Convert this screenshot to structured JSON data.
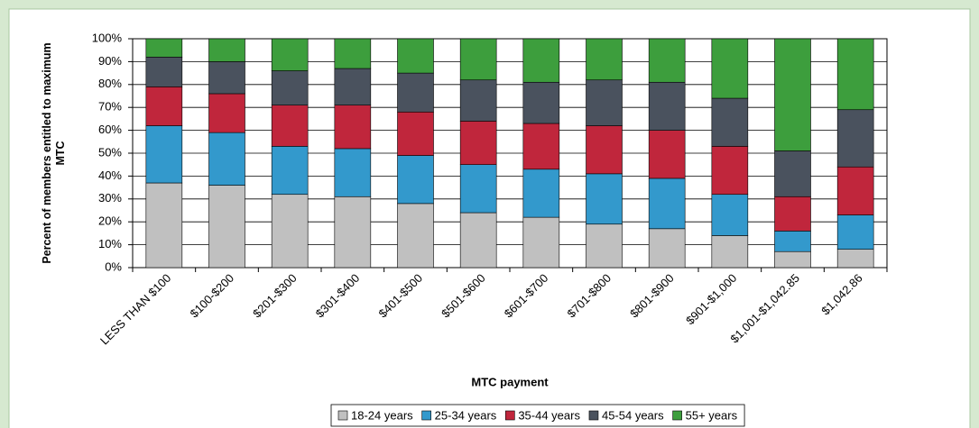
{
  "chart_data": {
    "type": "stacked_bar",
    "x_label": "MTC payment",
    "y_label": "Percent of members entitled to maximum MTC",
    "categories": [
      "LESS THAN $100",
      "$100-$200",
      "$201-$300",
      "$301-$400",
      "$401-$500",
      "$501-$600",
      "$601-$700",
      "$701-$800",
      "$801-$900",
      "$901-$1,000",
      "$1,001-$1,042.85",
      "$1,042.86"
    ],
    "series": [
      {
        "name": "18-24 years",
        "color": "#c0c0c0",
        "values": [
          37,
          36,
          32,
          31,
          28,
          24,
          22,
          19,
          17,
          14,
          7,
          8
        ]
      },
      {
        "name": "25-34 years",
        "color": "#3399cc",
        "values": [
          25,
          23,
          21,
          21,
          21,
          21,
          21,
          22,
          22,
          18,
          9,
          15
        ]
      },
      {
        "name": "35-44 years",
        "color": "#c0263c",
        "values": [
          17,
          17,
          18,
          19,
          19,
          19,
          20,
          21,
          21,
          21,
          15,
          21
        ]
      },
      {
        "name": "45-54 years",
        "color": "#4a525e",
        "values": [
          13,
          14,
          15,
          16,
          17,
          18,
          18,
          20,
          21,
          21,
          20,
          25
        ]
      },
      {
        "name": "55+ years",
        "color": "#3d9e3d",
        "values": [
          8,
          10,
          14,
          13,
          15,
          18,
          19,
          18,
          19,
          26,
          49,
          31
        ]
      }
    ],
    "ylim": [
      0,
      100
    ],
    "yticks": [
      {
        "value": 0,
        "label": "0%"
      },
      {
        "value": 10,
        "label": "10%"
      },
      {
        "value": 20,
        "label": "20%"
      },
      {
        "value": 30,
        "label": "30%"
      },
      {
        "value": 40,
        "label": "40%"
      },
      {
        "value": 50,
        "label": "50%"
      },
      {
        "value": 60,
        "label": "60%"
      },
      {
        "value": 70,
        "label": "70%"
      },
      {
        "value": 80,
        "label": "80%"
      },
      {
        "value": 90,
        "label": "90%"
      },
      {
        "value": 100,
        "label": "100%"
      }
    ],
    "grid": true,
    "legend": "bottom"
  }
}
